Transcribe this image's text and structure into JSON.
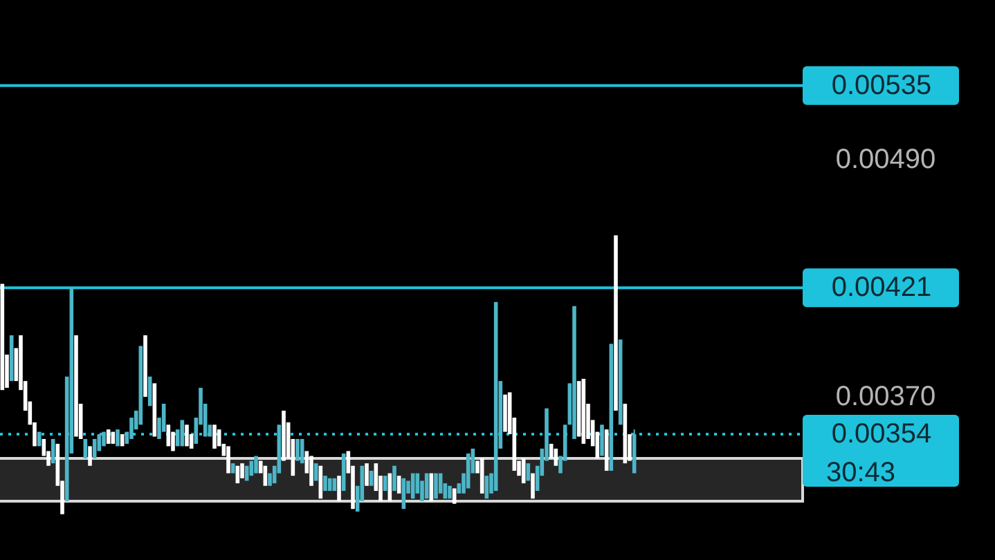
{
  "chart_data": {
    "type": "candlestick",
    "categories": [
      null,
      null,
      null,
      null,
      null,
      null,
      null,
      null,
      null,
      null,
      null,
      null,
      null,
      null,
      null,
      null,
      null,
      null,
      null,
      null,
      null,
      null,
      null,
      null,
      null,
      null,
      null,
      null,
      null,
      null,
      null,
      null,
      null,
      null,
      null,
      null,
      null,
      null,
      null,
      null,
      null,
      null,
      null,
      null,
      null,
      null,
      null,
      null,
      null,
      null,
      null,
      null,
      null,
      null,
      null,
      null,
      null,
      null,
      null,
      null,
      null,
      null,
      null,
      null,
      null,
      null,
      null,
      null,
      null,
      null,
      null,
      null,
      null,
      null,
      null,
      null,
      null,
      null,
      null,
      null,
      null,
      null,
      null,
      null,
      null,
      null,
      null,
      null,
      null,
      null,
      null,
      null,
      null,
      null,
      null,
      null,
      null,
      null,
      null,
      null,
      null,
      null,
      null,
      null,
      null,
      null,
      null,
      null,
      null,
      null,
      null,
      null,
      null,
      null,
      null,
      null,
      null,
      null,
      null,
      null,
      null,
      null,
      null,
      null,
      null,
      null,
      null,
      null,
      null,
      null,
      null,
      null,
      null,
      null,
      null,
      null,
      null,
      null,
      null,
      null,
      null,
      null,
      null,
      null,
      null,
      null,
      null,
      null,
      null,
      null,
      null,
      null,
      null,
      null,
      null,
      null,
      null,
      null,
      null,
      null,
      null,
      null,
      null,
      null,
      null,
      null,
      null,
      null,
      null,
      null,
      null,
      null,
      null,
      null
    ],
    "ohlc": [
      [
        0.00423,
        0.00423,
        0.00373,
        0.00373
      ],
      [
        0.00389,
        0.00389,
        0.00374,
        0.00374
      ],
      [
        0.00377,
        0.00398,
        0.00377,
        0.00398
      ],
      [
        0.00392,
        0.00392,
        0.00377,
        0.00377
      ],
      [
        0.00398,
        0.00398,
        0.00373,
        0.00373
      ],
      [
        0.00377,
        0.00377,
        0.00364,
        0.00364
      ],
      [
        0.00368,
        0.00368,
        0.00358,
        0.00358
      ],
      [
        0.00359,
        0.00359,
        0.00349,
        0.00349
      ],
      [
        0.00349,
        0.00355,
        0.00349,
        0.00355
      ],
      [
        0.00352,
        0.00352,
        0.00345,
        0.00345
      ],
      [
        0.00347,
        0.00347,
        0.00341,
        0.00341
      ],
      [
        0.00342,
        0.00352,
        0.00342,
        0.00352
      ],
      [
        0.0035,
        0.0035,
        0.00333,
        0.00333
      ],
      [
        0.00335,
        0.00335,
        0.00322,
        0.00322
      ],
      [
        0.00327,
        0.00379,
        0.00327,
        0.00379
      ],
      [
        0.00346,
        0.00421,
        0.00346,
        0.00421
      ],
      [
        0.00398,
        0.00398,
        0.00353,
        0.00353
      ],
      [
        0.00367,
        0.00367,
        0.00352,
        0.00352
      ],
      [
        0.00344,
        0.00352,
        0.00344,
        0.00352
      ],
      [
        0.00349,
        0.00349,
        0.00341,
        0.00341
      ],
      [
        0.00344,
        0.00352,
        0.00344,
        0.00352
      ],
      [
        0.00347,
        0.00354,
        0.00347,
        0.00354
      ],
      [
        0.00349,
        0.00355,
        0.00349,
        0.00355
      ],
      [
        0.00356,
        0.00356,
        0.0035,
        0.0035
      ],
      [
        0.00355,
        0.00355,
        0.0035,
        0.0035
      ],
      [
        0.00349,
        0.00356,
        0.00349,
        0.00356
      ],
      [
        0.00354,
        0.00354,
        0.00349,
        0.00349
      ],
      [
        0.0035,
        0.00355,
        0.0035,
        0.00355
      ],
      [
        0.00352,
        0.00361,
        0.00352,
        0.00361
      ],
      [
        0.00356,
        0.00364,
        0.00356,
        0.00364
      ],
      [
        0.00358,
        0.00393,
        0.00358,
        0.00393
      ],
      [
        0.00398,
        0.00398,
        0.0037,
        0.0037
      ],
      [
        0.00366,
        0.00379,
        0.00366,
        0.00379
      ],
      [
        0.00376,
        0.00376,
        0.00353,
        0.00353
      ],
      [
        0.00352,
        0.00361,
        0.00352,
        0.00361
      ],
      [
        0.00355,
        0.00367,
        0.00355,
        0.00367
      ],
      [
        0.00358,
        0.00358,
        0.00349,
        0.00349
      ],
      [
        0.00355,
        0.00355,
        0.00347,
        0.00347
      ],
      [
        0.00349,
        0.00356,
        0.00349,
        0.00356
      ],
      [
        0.00349,
        0.0036,
        0.00349,
        0.0036
      ],
      [
        0.00358,
        0.00358,
        0.00349,
        0.00349
      ],
      [
        0.00354,
        0.00354,
        0.00348,
        0.00348
      ],
      [
        0.0035,
        0.00361,
        0.0035,
        0.00361
      ],
      [
        0.00358,
        0.00374,
        0.00358,
        0.00374
      ],
      [
        0.00353,
        0.00367,
        0.00353,
        0.00367
      ],
      [
        0.00353,
        0.00358,
        0.00353,
        0.00358
      ],
      [
        0.00358,
        0.00358,
        0.00348,
        0.00348
      ],
      [
        0.00356,
        0.00356,
        0.00349,
        0.00349
      ],
      [
        0.0035,
        0.0035,
        0.00345,
        0.00345
      ],
      [
        0.00349,
        0.00349,
        0.00338,
        0.00338
      ],
      [
        0.00338,
        0.00342,
        0.00338,
        0.00342
      ],
      [
        0.00341,
        0.00341,
        0.00334,
        0.00334
      ],
      [
        0.00342,
        0.00342,
        0.00336,
        0.00336
      ],
      [
        0.00335,
        0.00341,
        0.00335,
        0.00341
      ],
      [
        0.00337,
        0.00343,
        0.00337,
        0.00343
      ],
      [
        0.00338,
        0.00345,
        0.00338,
        0.00345
      ],
      [
        0.00343,
        0.00343,
        0.00338,
        0.00338
      ],
      [
        0.00341,
        0.00341,
        0.00333,
        0.00333
      ],
      [
        0.00333,
        0.00338,
        0.00333,
        0.00338
      ],
      [
        0.00334,
        0.00341,
        0.00334,
        0.00341
      ],
      [
        0.00338,
        0.00358,
        0.00338,
        0.00358
      ],
      [
        0.00364,
        0.00364,
        0.00343,
        0.00343
      ],
      [
        0.00359,
        0.00359,
        0.00344,
        0.00344
      ],
      [
        0.00352,
        0.00352,
        0.00337,
        0.00337
      ],
      [
        0.00343,
        0.00352,
        0.00343,
        0.00352
      ],
      [
        0.00342,
        0.00352,
        0.00342,
        0.00352
      ],
      [
        0.00347,
        0.00347,
        0.00338,
        0.00338
      ],
      [
        0.00345,
        0.00345,
        0.00333,
        0.00333
      ],
      [
        0.00335,
        0.00342,
        0.00335,
        0.00342
      ],
      [
        0.00341,
        0.00341,
        0.00328,
        0.00328
      ],
      [
        0.00331,
        0.00337,
        0.00331,
        0.00337
      ],
      [
        0.00331,
        0.00336,
        0.00331,
        0.00336
      ],
      [
        0.00331,
        0.00336,
        0.00331,
        0.00336
      ],
      [
        0.00337,
        0.00337,
        0.00327,
        0.00327
      ],
      [
        0.00331,
        0.00346,
        0.00331,
        0.00346
      ],
      [
        0.00347,
        0.00347,
        0.00338,
        0.00338
      ],
      [
        0.00341,
        0.00341,
        0.00324,
        0.00324
      ],
      [
        0.00323,
        0.00333,
        0.00323,
        0.00333
      ],
      [
        0.00327,
        0.00341,
        0.00327,
        0.00341
      ],
      [
        0.00342,
        0.00342,
        0.00333,
        0.00333
      ],
      [
        0.00333,
        0.00339,
        0.00333,
        0.00339
      ],
      [
        0.00342,
        0.00342,
        0.00331,
        0.00331
      ],
      [
        0.00337,
        0.00337,
        0.00327,
        0.00327
      ],
      [
        0.00331,
        0.00337,
        0.00331,
        0.00337
      ],
      [
        0.00338,
        0.00338,
        0.00327,
        0.00327
      ],
      [
        0.00331,
        0.00341,
        0.00331,
        0.00341
      ],
      [
        0.00337,
        0.00337,
        0.0033,
        0.0033
      ],
      [
        0.00324,
        0.00336,
        0.00324,
        0.00336
      ],
      [
        0.0033,
        0.00335,
        0.0033,
        0.00335
      ],
      [
        0.00328,
        0.00338,
        0.00328,
        0.00338
      ],
      [
        0.0033,
        0.00338,
        0.0033,
        0.00338
      ],
      [
        0.00327,
        0.00335,
        0.00327,
        0.00335
      ],
      [
        0.00328,
        0.00338,
        0.00328,
        0.00338
      ],
      [
        0.00338,
        0.00338,
        0.00327,
        0.00327
      ],
      [
        0.00328,
        0.00338,
        0.00328,
        0.00338
      ],
      [
        0.0033,
        0.00338,
        0.0033,
        0.00338
      ],
      [
        0.00328,
        0.00334,
        0.00328,
        0.00334
      ],
      [
        0.00328,
        0.00333,
        0.00328,
        0.00333
      ],
      [
        0.00332,
        0.00332,
        0.00326,
        0.00326
      ],
      [
        0.0033,
        0.00334,
        0.0033,
        0.00334
      ],
      [
        0.0033,
        0.00338,
        0.0033,
        0.00338
      ],
      [
        0.00332,
        0.00346,
        0.00332,
        0.00346
      ],
      [
        0.00338,
        0.00348,
        0.00338,
        0.00348
      ],
      [
        0.00343,
        0.00343,
        0.00338,
        0.00338
      ],
      [
        0.00344,
        0.00344,
        0.0033,
        0.0033
      ],
      [
        0.00328,
        0.00337,
        0.00328,
        0.00337
      ],
      [
        0.0033,
        0.00338,
        0.0033,
        0.00338
      ],
      [
        0.00331,
        0.00414,
        0.00331,
        0.00414
      ],
      [
        0.00348,
        0.00377,
        0.00348,
        0.00377
      ],
      [
        0.00371,
        0.00371,
        0.00355,
        0.00355
      ],
      [
        0.00372,
        0.00372,
        0.00354,
        0.00354
      ],
      [
        0.00361,
        0.00361,
        0.00339,
        0.00339
      ],
      [
        0.00343,
        0.00343,
        0.00337,
        0.00337
      ],
      [
        0.00344,
        0.00344,
        0.00334,
        0.00334
      ],
      [
        0.00335,
        0.00342,
        0.00335,
        0.00342
      ],
      [
        0.00338,
        0.00338,
        0.00328,
        0.00328
      ],
      [
        0.00331,
        0.00341,
        0.00331,
        0.00341
      ],
      [
        0.00337,
        0.00348,
        0.00337,
        0.00348
      ],
      [
        0.00343,
        0.00365,
        0.00343,
        0.00365
      ],
      [
        0.0035,
        0.0035,
        0.00344,
        0.00344
      ],
      [
        0.00348,
        0.00348,
        0.00341,
        0.00341
      ],
      [
        0.00338,
        0.00345,
        0.00338,
        0.00345
      ],
      [
        0.00343,
        0.00358,
        0.00343,
        0.00358
      ],
      [
        0.00358,
        0.00376,
        0.00358,
        0.00376
      ],
      [
        0.00352,
        0.00412,
        0.00352,
        0.00412
      ],
      [
        0.00377,
        0.00377,
        0.00353,
        0.00353
      ],
      [
        0.00378,
        0.00378,
        0.0035,
        0.0035
      ],
      [
        0.00367,
        0.00367,
        0.00352,
        0.00352
      ],
      [
        0.0036,
        0.0036,
        0.00349,
        0.00349
      ],
      [
        0.00355,
        0.00355,
        0.00344,
        0.00344
      ],
      [
        0.00345,
        0.00358,
        0.00345,
        0.00358
      ],
      [
        0.00356,
        0.00356,
        0.00339,
        0.00339
      ],
      [
        0.00339,
        0.00394,
        0.00339,
        0.00394
      ],
      [
        0.00448,
        0.00448,
        0.00364,
        0.00364
      ],
      [
        0.00358,
        0.00396,
        0.00358,
        0.00396
      ],
      [
        0.00367,
        0.00367,
        0.00342,
        0.00342
      ],
      [
        0.00354,
        0.00354,
        0.00343,
        0.00343
      ],
      [
        0.00338,
        0.00356,
        0.00338,
        0.00354
      ],
      null,
      null,
      null,
      null,
      null,
      null,
      null,
      null,
      null,
      null,
      null,
      null,
      null,
      null,
      null,
      null,
      null,
      null,
      null,
      null,
      null,
      null,
      null,
      null,
      null,
      null,
      null,
      null,
      null,
      null,
      null,
      null,
      null,
      null,
      null,
      null
    ],
    "colors": [
      "#ffffff",
      "#ffffff",
      "#4db6c8",
      "#ffffff",
      "#ffffff",
      "#ffffff",
      "#ffffff",
      "#ffffff",
      "#4db6c8",
      "#ffffff",
      "#ffffff",
      "#4db6c8",
      "#ffffff",
      "#ffffff",
      "#4db6c8",
      "#4db6c8",
      "#ffffff",
      "#ffffff",
      "#4db6c8",
      "#ffffff",
      "#4db6c8",
      "#4db6c8",
      "#4db6c8",
      "#ffffff",
      "#ffffff",
      "#4db6c8",
      "#ffffff",
      "#4db6c8",
      "#4db6c8",
      "#4db6c8",
      "#4db6c8",
      "#ffffff",
      "#4db6c8",
      "#ffffff",
      "#4db6c8",
      "#4db6c8",
      "#ffffff",
      "#ffffff",
      "#4db6c8",
      "#4db6c8",
      "#ffffff",
      "#ffffff",
      "#4db6c8",
      "#4db6c8",
      "#4db6c8",
      "#4db6c8",
      "#ffffff",
      "#ffffff",
      "#ffffff",
      "#ffffff",
      "#4db6c8",
      "#ffffff",
      "#ffffff",
      "#4db6c8",
      "#4db6c8",
      "#4db6c8",
      "#ffffff",
      "#ffffff",
      "#4db6c8",
      "#4db6c8",
      "#4db6c8",
      "#ffffff",
      "#ffffff",
      "#ffffff",
      "#4db6c8",
      "#4db6c8",
      "#ffffff",
      "#ffffff",
      "#4db6c8",
      "#ffffff",
      "#4db6c8",
      "#4db6c8",
      "#4db6c8",
      "#ffffff",
      "#4db6c8",
      "#ffffff",
      "#ffffff",
      "#4db6c8",
      "#4db6c8",
      "#ffffff",
      "#4db6c8",
      "#ffffff",
      "#ffffff",
      "#4db6c8",
      "#ffffff",
      "#4db6c8",
      "#ffffff",
      "#4db6c8",
      "#4db6c8",
      "#4db6c8",
      "#4db6c8",
      "#4db6c8",
      "#4db6c8",
      "#ffffff",
      "#4db6c8",
      "#4db6c8",
      "#4db6c8",
      "#4db6c8",
      "#ffffff",
      "#4db6c8",
      "#4db6c8",
      "#4db6c8",
      "#4db6c8",
      "#ffffff",
      "#ffffff",
      "#4db6c8",
      "#4db6c8",
      "#4db6c8",
      "#4db6c8",
      "#ffffff",
      "#ffffff",
      "#ffffff",
      "#ffffff",
      "#ffffff",
      "#4db6c8",
      "#ffffff",
      "#4db6c8",
      "#4db6c8",
      "#4db6c8",
      "#ffffff",
      "#ffffff",
      "#4db6c8",
      "#4db6c8",
      "#4db6c8",
      "#4db6c8",
      "#ffffff",
      "#ffffff",
      "#ffffff",
      "#ffffff",
      "#ffffff",
      "#4db6c8",
      "#ffffff",
      "#4db6c8",
      "#ffffff",
      "#4db6c8",
      "#ffffff",
      "#ffffff",
      "#4db6c8",
      null,
      null,
      null,
      null,
      null,
      null,
      null,
      null,
      null,
      null,
      null,
      null,
      null,
      null,
      null,
      null,
      null,
      null,
      null,
      null,
      null,
      null,
      null,
      null,
      null,
      null,
      null,
      null,
      null,
      null,
      null,
      null,
      null,
      null,
      null,
      null
    ],
    "log": "y",
    "ylim": [
      0.00305,
      0.00592
    ],
    "yticks": [
      {
        "value": 0.0049,
        "label": "0.00490"
      },
      {
        "value": 0.0037,
        "label": "0.00370"
      }
    ],
    "tick_labels": "y",
    "ref_lines": [
      {
        "axis": "y",
        "value": 0.00535,
        "label": "0.00535",
        "color": "#1fc2dc",
        "line_style": "solid"
      },
      {
        "axis": "y",
        "value": 0.00421,
        "label": "0.00421",
        "color": "#1fc2dc",
        "line_style": "solid"
      },
      {
        "axis": "y",
        "value": 0.00354,
        "label": "0.00354",
        "color": "#1fc2dc",
        "line_style": "dotted"
      }
    ],
    "bands": [
      {
        "axis": "y",
        "from": 0.00327,
        "to": 0.00344,
        "color": "#262626"
      }
    ],
    "annotations": [
      "30:43"
    ]
  }
}
